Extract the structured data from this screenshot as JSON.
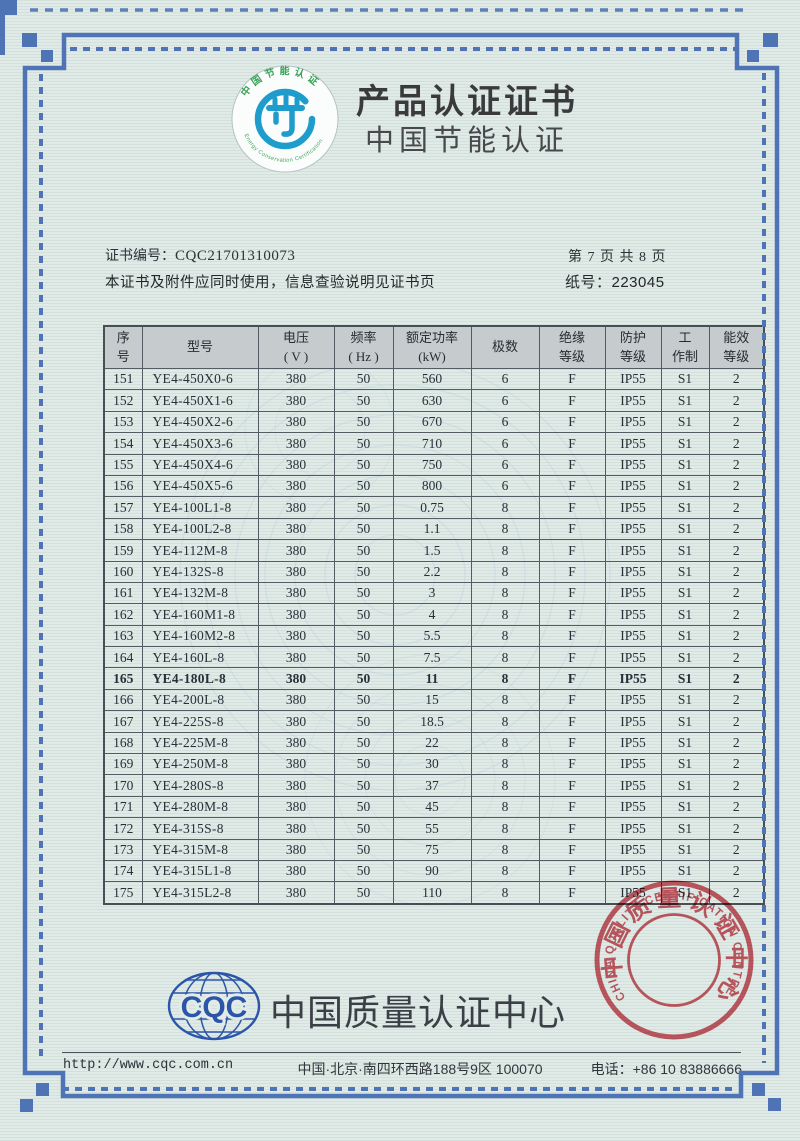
{
  "page": {
    "title": "产品认证证书",
    "subtitle": "中国节能认证",
    "cert_no_label": "证书编号：",
    "cert_no": "CQC21701310073",
    "page_info": "第 7 页  共 8 页",
    "usage_note": "本证书及附件应同时使用，信息查验说明见证书页",
    "paper_no": "纸号：223045"
  },
  "top_logo": {
    "arc_top": "中国节能认证",
    "arc_bottom": "Energy Conservation Certification"
  },
  "table": {
    "headers": [
      "序\n号",
      "型号",
      "电压\n( V )",
      "频率\n( Hz )",
      "额定功率\n(kW)",
      "极数",
      "绝缘\n等级",
      "防护\n等级",
      "工\n作制",
      "能效\n等级"
    ],
    "bold_row_no": "165",
    "rows": [
      [
        "151",
        "YE4-450X0-6",
        "380",
        "50",
        "560",
        "6",
        "F",
        "IP55",
        "S1",
        "2"
      ],
      [
        "152",
        "YE4-450X1-6",
        "380",
        "50",
        "630",
        "6",
        "F",
        "IP55",
        "S1",
        "2"
      ],
      [
        "153",
        "YE4-450X2-6",
        "380",
        "50",
        "670",
        "6",
        "F",
        "IP55",
        "S1",
        "2"
      ],
      [
        "154",
        "YE4-450X3-6",
        "380",
        "50",
        "710",
        "6",
        "F",
        "IP55",
        "S1",
        "2"
      ],
      [
        "155",
        "YE4-450X4-6",
        "380",
        "50",
        "750",
        "6",
        "F",
        "IP55",
        "S1",
        "2"
      ],
      [
        "156",
        "YE4-450X5-6",
        "380",
        "50",
        "800",
        "6",
        "F",
        "IP55",
        "S1",
        "2"
      ],
      [
        "157",
        "YE4-100L1-8",
        "380",
        "50",
        "0.75",
        "8",
        "F",
        "IP55",
        "S1",
        "2"
      ],
      [
        "158",
        "YE4-100L2-8",
        "380",
        "50",
        "1.1",
        "8",
        "F",
        "IP55",
        "S1",
        "2"
      ],
      [
        "159",
        "YE4-112M-8",
        "380",
        "50",
        "1.5",
        "8",
        "F",
        "IP55",
        "S1",
        "2"
      ],
      [
        "160",
        "YE4-132S-8",
        "380",
        "50",
        "2.2",
        "8",
        "F",
        "IP55",
        "S1",
        "2"
      ],
      [
        "161",
        "YE4-132M-8",
        "380",
        "50",
        "3",
        "8",
        "F",
        "IP55",
        "S1",
        "2"
      ],
      [
        "162",
        "YE4-160M1-8",
        "380",
        "50",
        "4",
        "8",
        "F",
        "IP55",
        "S1",
        "2"
      ],
      [
        "163",
        "YE4-160M2-8",
        "380",
        "50",
        "5.5",
        "8",
        "F",
        "IP55",
        "S1",
        "2"
      ],
      [
        "164",
        "YE4-160L-8",
        "380",
        "50",
        "7.5",
        "8",
        "F",
        "IP55",
        "S1",
        "2"
      ],
      [
        "165",
        "YE4-180L-8",
        "380",
        "50",
        "11",
        "8",
        "F",
        "IP55",
        "S1",
        "2"
      ],
      [
        "166",
        "YE4-200L-8",
        "380",
        "50",
        "15",
        "8",
        "F",
        "IP55",
        "S1",
        "2"
      ],
      [
        "167",
        "YE4-225S-8",
        "380",
        "50",
        "18.5",
        "8",
        "F",
        "IP55",
        "S1",
        "2"
      ],
      [
        "168",
        "YE4-225M-8",
        "380",
        "50",
        "22",
        "8",
        "F",
        "IP55",
        "S1",
        "2"
      ],
      [
        "169",
        "YE4-250M-8",
        "380",
        "50",
        "30",
        "8",
        "F",
        "IP55",
        "S1",
        "2"
      ],
      [
        "170",
        "YE4-280S-8",
        "380",
        "50",
        "37",
        "8",
        "F",
        "IP55",
        "S1",
        "2"
      ],
      [
        "171",
        "YE4-280M-8",
        "380",
        "50",
        "45",
        "8",
        "F",
        "IP55",
        "S1",
        "2"
      ],
      [
        "172",
        "YE4-315S-8",
        "380",
        "50",
        "55",
        "8",
        "F",
        "IP55",
        "S1",
        "2"
      ],
      [
        "173",
        "YE4-315M-8",
        "380",
        "50",
        "75",
        "8",
        "F",
        "IP55",
        "S1",
        "2"
      ],
      [
        "174",
        "YE4-315L1-8",
        "380",
        "50",
        "90",
        "8",
        "F",
        "IP55",
        "S1",
        "2"
      ],
      [
        "175",
        "YE4-315L2-8",
        "380",
        "50",
        "110",
        "8",
        "F",
        "IP55",
        "S1",
        "2"
      ]
    ]
  },
  "seal": {
    "ring_text": "CHINA  QUALITY  CERTIFICATION  CENTRE",
    "inner_text": "中国质量认证中心"
  },
  "bottom_logo": {
    "abbr": "CQC",
    "org_name": "中国质量认证中心"
  },
  "footer": {
    "url": "http://www.cqc.com.cn",
    "address": "中国·北京·南四环西路188号9区  100070",
    "phone": "电话：+86 10 83886666"
  },
  "colors": {
    "border_blue": "#4e74b5",
    "seal_red": "#cd4652",
    "emblem_blue": "#1e9ccc",
    "emblem_green": "#3aa158",
    "cqc_blue": "#2b55a8",
    "table_header_gray": "#c6cbce"
  }
}
